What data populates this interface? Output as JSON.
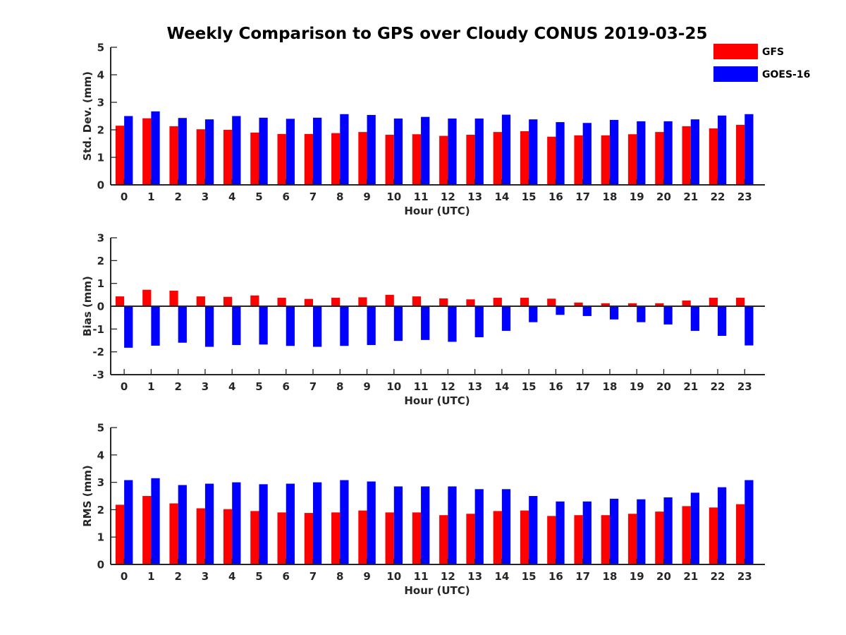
{
  "figure": {
    "title": "Weekly Comparison to GPS over Cloudy CONUS 2019-03-25"
  },
  "legend": {
    "placement": "top-right",
    "items": [
      {
        "label": "GFS",
        "color": "#ff0000"
      },
      {
        "label": "GOES-16",
        "color": "#0000ff"
      }
    ]
  },
  "chart_data": [
    {
      "type": "bar",
      "xlabel": "Hour (UTC)",
      "ylabel": "Std. Dev. (mm)",
      "ylim": [
        0,
        5
      ],
      "yticks": [
        0,
        1,
        2,
        3,
        4,
        5
      ],
      "categories": [
        "0",
        "1",
        "2",
        "3",
        "4",
        "5",
        "6",
        "7",
        "8",
        "9",
        "10",
        "11",
        "12",
        "13",
        "14",
        "15",
        "16",
        "17",
        "18",
        "19",
        "20",
        "21",
        "22",
        "23"
      ],
      "series": [
        {
          "name": "GFS",
          "color": "#ff0000",
          "values": [
            2.15,
            2.42,
            2.13,
            2.02,
            2.0,
            1.9,
            1.85,
            1.85,
            1.88,
            1.92,
            1.82,
            1.84,
            1.78,
            1.82,
            1.92,
            1.95,
            1.75,
            1.8,
            1.8,
            1.84,
            1.92,
            2.13,
            2.05,
            2.18
          ]
        },
        {
          "name": "GOES-16",
          "color": "#0000ff",
          "values": [
            2.5,
            2.67,
            2.43,
            2.38,
            2.5,
            2.44,
            2.4,
            2.44,
            2.57,
            2.54,
            2.41,
            2.47,
            2.41,
            2.41,
            2.55,
            2.38,
            2.28,
            2.25,
            2.36,
            2.31,
            2.31,
            2.38,
            2.52,
            2.57
          ]
        }
      ]
    },
    {
      "type": "bar",
      "xlabel": "Hour (UTC)",
      "ylabel": "Bias (mm)",
      "ylim": [
        -3,
        3
      ],
      "yticks": [
        -3,
        -2,
        -1,
        0,
        1,
        2,
        3
      ],
      "categories": [
        "0",
        "1",
        "2",
        "3",
        "4",
        "5",
        "6",
        "7",
        "8",
        "9",
        "10",
        "11",
        "12",
        "13",
        "14",
        "15",
        "16",
        "17",
        "18",
        "19",
        "20",
        "21",
        "22",
        "23"
      ],
      "series": [
        {
          "name": "GFS",
          "color": "#ff0000",
          "values": [
            0.43,
            0.72,
            0.68,
            0.43,
            0.41,
            0.47,
            0.37,
            0.32,
            0.37,
            0.39,
            0.5,
            0.43,
            0.34,
            0.3,
            0.37,
            0.37,
            0.33,
            0.16,
            0.13,
            0.13,
            0.13,
            0.25,
            0.37,
            0.37
          ]
        },
        {
          "name": "GOES-16",
          "color": "#0000ff",
          "values": [
            -1.82,
            -1.73,
            -1.6,
            -1.78,
            -1.7,
            -1.68,
            -1.74,
            -1.78,
            -1.74,
            -1.7,
            -1.52,
            -1.48,
            -1.56,
            -1.36,
            -1.08,
            -0.7,
            -0.38,
            -0.43,
            -0.58,
            -0.7,
            -0.8,
            -1.08,
            -1.3,
            -1.72
          ]
        }
      ]
    },
    {
      "type": "bar",
      "xlabel": "Hour (UTC)",
      "ylabel": "RMS (mm)",
      "ylim": [
        0,
        5
      ],
      "yticks": [
        0,
        1,
        2,
        3,
        4,
        5
      ],
      "categories": [
        "0",
        "1",
        "2",
        "3",
        "4",
        "5",
        "6",
        "7",
        "8",
        "9",
        "10",
        "11",
        "12",
        "13",
        "14",
        "15",
        "16",
        "17",
        "18",
        "19",
        "20",
        "21",
        "22",
        "23"
      ],
      "series": [
        {
          "name": "GFS",
          "color": "#ff0000",
          "values": [
            2.18,
            2.5,
            2.23,
            2.05,
            2.02,
            1.95,
            1.9,
            1.88,
            1.9,
            1.97,
            1.9,
            1.9,
            1.8,
            1.85,
            1.95,
            1.97,
            1.77,
            1.8,
            1.8,
            1.85,
            1.93,
            2.13,
            2.08,
            2.2
          ]
        },
        {
          "name": "GOES-16",
          "color": "#0000ff",
          "values": [
            3.08,
            3.15,
            2.9,
            2.95,
            3.0,
            2.93,
            2.95,
            3.0,
            3.08,
            3.03,
            2.85,
            2.85,
            2.85,
            2.75,
            2.75,
            2.5,
            2.3,
            2.3,
            2.4,
            2.38,
            2.45,
            2.62,
            2.82,
            3.08
          ]
        }
      ]
    }
  ]
}
